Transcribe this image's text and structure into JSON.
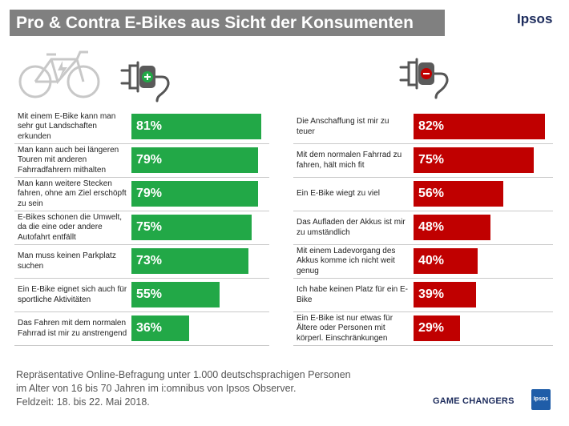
{
  "header": {
    "title": "Pro & Contra E-Bikes aus Sicht der Konsumenten",
    "brand": "Ipsos"
  },
  "colors": {
    "pro": "#22a847",
    "contra": "#c00000",
    "title_bg": "#808080",
    "brand": "#1c2b5c"
  },
  "icons": {
    "pro": "plug-plus-icon",
    "contra": "plug-minus-icon",
    "bike": "bicycle-icon"
  },
  "chart_data": [
    {
      "type": "bar",
      "orientation": "horizontal",
      "title": "",
      "unit": "%",
      "xlim": [
        0,
        100
      ],
      "categories": [
        "Mit einem E-Bike kann man sehr gut Landschaften erkunden",
        "Man kann auch bei längeren Touren mit anderen Fahrradfahrern mithalten",
        "Man kann weitere Stecken fahren, ohne am Ziel erschöpft zu sein",
        "E-Bikes schonen die Umwelt, da die eine oder andere Autofahrt entfällt",
        "Man muss keinen Parkplatz suchen",
        "Ein E-Bike eignet sich auch für sportliche Aktivitäten",
        "Das Fahren mit dem normalen Fahrrad ist mir zu anstrengend"
      ],
      "values": [
        81,
        79,
        79,
        75,
        73,
        55,
        36
      ],
      "value_labels": [
        "81%",
        "79%",
        "79%",
        "75%",
        "73%",
        "55%",
        "36%"
      ]
    },
    {
      "type": "bar",
      "orientation": "horizontal",
      "title": "",
      "unit": "%",
      "xlim": [
        0,
        100
      ],
      "categories": [
        "Die Anschaffung ist mir zu teuer",
        "Mit dem normalen Fahrrad zu fahren, hält mich fit",
        "Ein E-Bike wiegt zu viel",
        "Das Aufladen der Akkus ist mir zu umständlich",
        "Mit einem Ladevorgang des Akkus komme ich nicht weit genug",
        "Ich habe keinen Platz für ein E-Bike",
        "Ein E-Bike ist nur etwas für Ältere oder Personen mit körperl. Einschränkungen"
      ],
      "values": [
        82,
        75,
        56,
        48,
        40,
        39,
        29
      ],
      "value_labels": [
        "82%",
        "75%",
        "56%",
        "48%",
        "40%",
        "39%",
        "29%"
      ]
    }
  ],
  "footnote": {
    "line1": "Repräsentative Online-Befragung unter 1.000 deutschsprachigen Personen",
    "line2": "im Alter von 16 bis 70 Jahren im i:omnibus von Ipsos Observer.",
    "line3": "Feldzeit: 18. bis 22. Mai 2018."
  },
  "footer": {
    "tagline": "GAME CHANGERS",
    "logo": "Ipsos"
  }
}
